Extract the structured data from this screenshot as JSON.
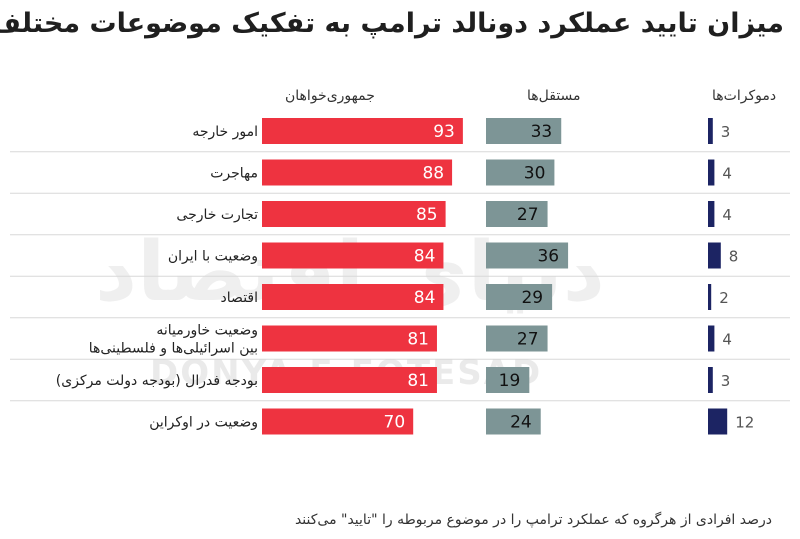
{
  "title": "میزان تایید عملکرد دونالد ترامپ به تفکیک موضوعات مختلف",
  "watermark": {
    "fa": "دنیای اقتصاد",
    "en": "DONYA-E-EQTESAD"
  },
  "footnote": "درصد افرادی از هرگروه که عملکرد ترامپ را در موضوع مربوطه را \"تایید\" می‌کنند",
  "chart_data": {
    "type": "bar",
    "categories": [
      [
        "امور خارجه"
      ],
      [
        "مهاجرت"
      ],
      [
        "تجارت خارجی"
      ],
      [
        "وضعیت با ایران"
      ],
      [
        "اقتصاد"
      ],
      [
        "وضعیت خاورمیانه",
        "بین اسرائیلی‌ها و فلسطینی‌ها"
      ],
      [
        "بودجه فدرال (بودجه دولت مرکزی)"
      ],
      [
        "وضعیت در اوکراین"
      ]
    ],
    "series": [
      {
        "name": "جمهوری‌خواهان",
        "color": "#ee3340",
        "values": [
          93,
          88,
          85,
          84,
          84,
          81,
          81,
          70
        ]
      },
      {
        "name": "مستقل‌ها",
        "color": "#7d9596",
        "values": [
          33,
          30,
          27,
          36,
          29,
          27,
          19,
          24
        ]
      },
      {
        "name": "دموکرات‌ها",
        "color": "#1c2463",
        "values": [
          3,
          4,
          4,
          8,
          2,
          4,
          3,
          12
        ]
      }
    ],
    "xlim": [
      0,
      100
    ],
    "grid": false,
    "legend": "top"
  }
}
